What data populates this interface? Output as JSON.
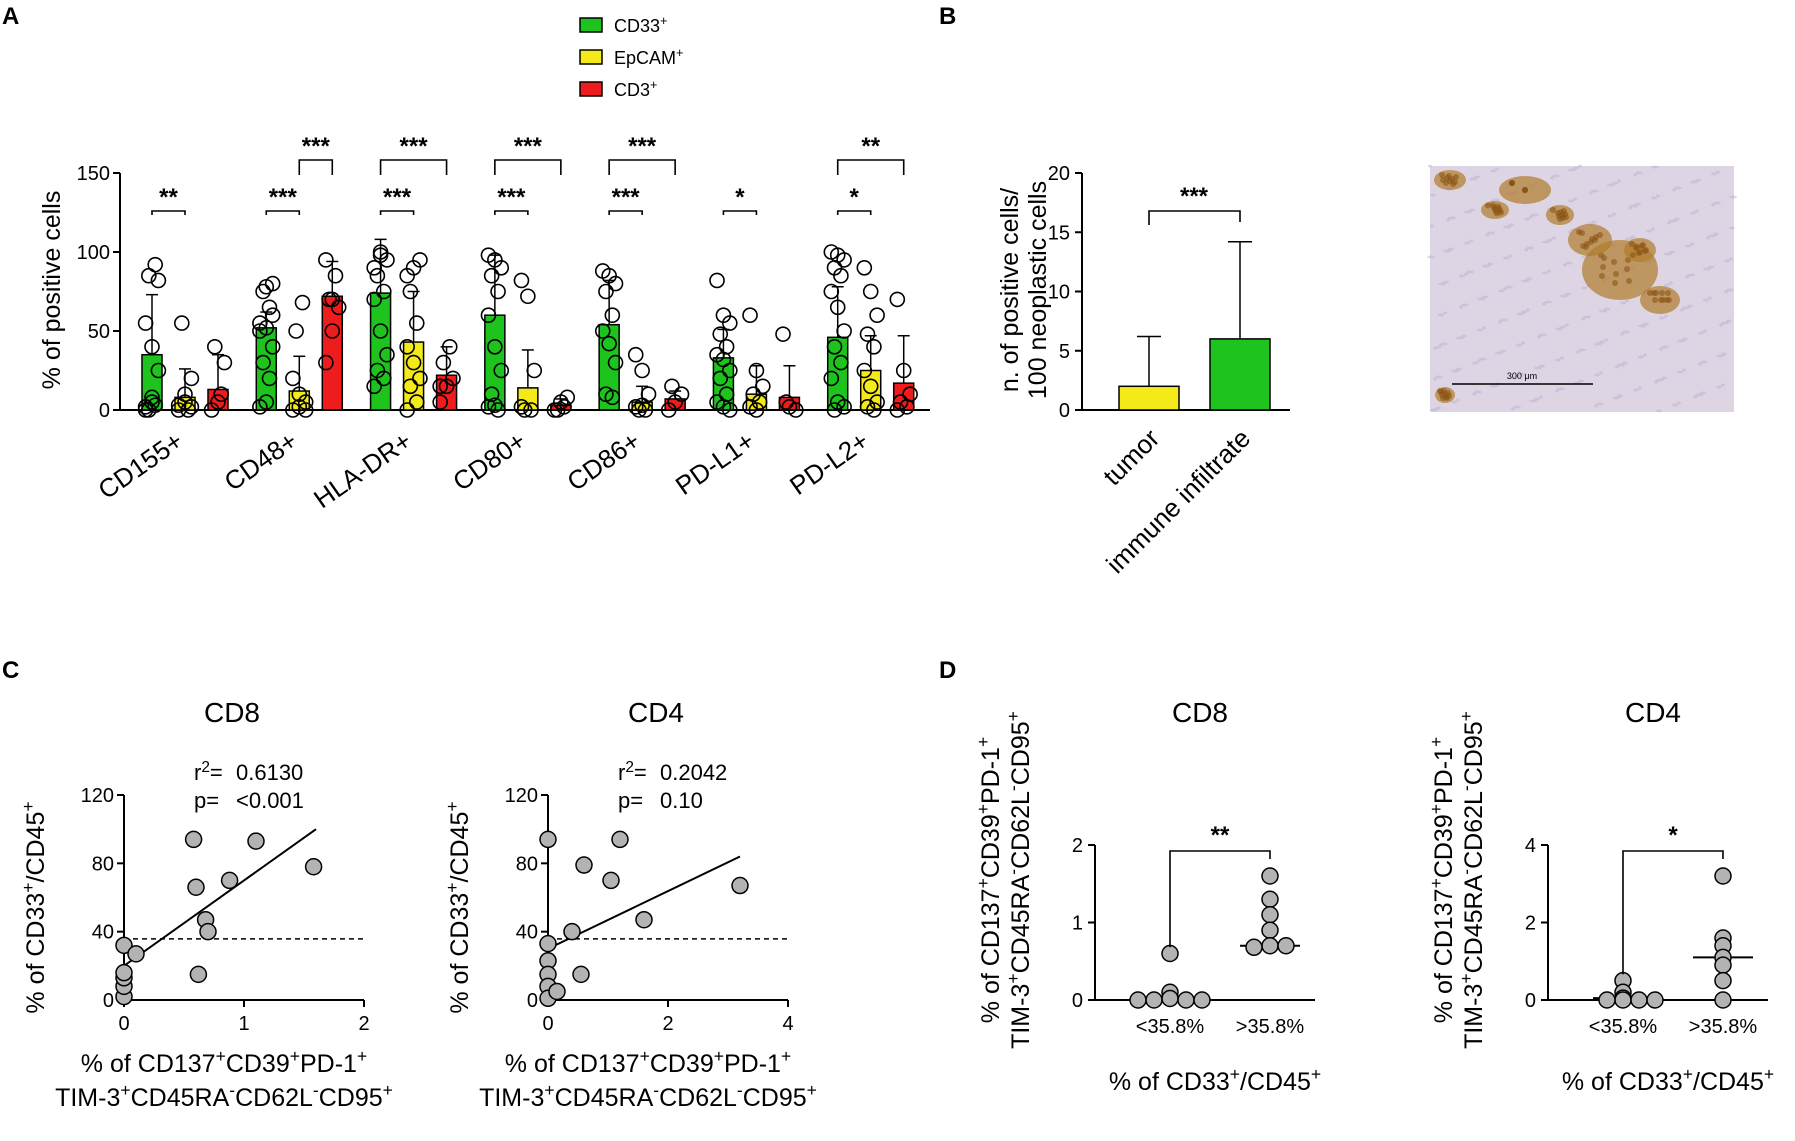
{
  "panels": {
    "A": "A",
    "B": "B",
    "C": "C",
    "D": "D"
  },
  "colors": {
    "CD33": "#1ec31e",
    "EpCAM": "#f5ea19",
    "CD3": "#ee1c1c",
    "point_fill": "#b3b3b3",
    "ihc_bg": "#ddd5e4",
    "ihc_stain": "#b07a2a"
  },
  "chart_data": [
    {
      "id": "A",
      "type": "bar",
      "title": "",
      "ylabel": "% of positive cells",
      "xlabel": "",
      "ylim": [
        0,
        150
      ],
      "yticks": [
        "0",
        "50",
        "100",
        "150"
      ],
      "legend": {
        "position": "top-center",
        "entries": [
          {
            "name": "CD33",
            "sup": "+",
            "color": "#1ec31e"
          },
          {
            "name": "EpCAM",
            "sup": "+",
            "color": "#f5ea19"
          },
          {
            "name": "CD3",
            "sup": "+",
            "color": "#ee1c1c"
          }
        ]
      },
      "categories": [
        "CD155+",
        "CD48+",
        "HLA-DR+",
        "CD80+",
        "CD86+",
        "PD-L1+",
        "PD-L2+"
      ],
      "series": [
        {
          "name": "CD33+",
          "values": [
            35,
            52,
            74,
            60,
            54,
            33,
            46
          ],
          "errors": [
            38,
            10,
            34,
            38,
            28,
            18,
            32
          ]
        },
        {
          "name": "EpCAM+",
          "values": [
            8,
            12,
            43,
            14,
            5,
            10,
            25
          ],
          "errors": [
            18,
            22,
            32,
            24,
            10,
            18,
            22
          ]
        },
        {
          "name": "CD3+",
          "values": [
            13,
            72,
            22,
            3,
            7,
            8,
            17
          ],
          "errors": [
            22,
            22,
            18,
            4,
            5,
            20,
            30
          ]
        }
      ],
      "points": [
        [
          [
            2,
            5,
            82,
            85,
            92,
            55,
            40,
            25,
            0,
            3,
            0,
            8
          ],
          [
            3,
            10,
            20,
            55,
            0,
            0,
            5,
            2
          ],
          [
            0,
            5,
            30,
            40,
            10
          ]
        ],
        [
          [
            50,
            78,
            80,
            75,
            65,
            55,
            52,
            40,
            30,
            20,
            2,
            5,
            60
          ],
          [
            0,
            2,
            5,
            50,
            68,
            20,
            10,
            0
          ],
          [
            30,
            50,
            65,
            70,
            85,
            95,
            70
          ]
        ],
        [
          [
            90,
            100,
            95,
            85,
            75,
            70,
            50,
            35,
            25,
            20,
            15,
            98
          ],
          [
            85,
            90,
            95,
            75,
            55,
            40,
            30,
            20,
            15,
            5,
            0
          ],
          [
            5,
            15,
            20,
            30,
            40,
            15
          ]
        ],
        [
          [
            98,
            95,
            90,
            85,
            75,
            60,
            40,
            25,
            10,
            0,
            2,
            3
          ],
          [
            82,
            72,
            25,
            0,
            0,
            2
          ],
          [
            0,
            5,
            8,
            0,
            2
          ]
        ],
        [
          [
            88,
            85,
            80,
            75,
            60,
            50,
            42,
            30,
            10,
            8
          ],
          [
            35,
            25,
            10,
            0,
            0,
            2,
            3
          ],
          [
            0,
            5,
            10,
            15
          ]
        ],
        [
          [
            82,
            60,
            55,
            48,
            40,
            35,
            32,
            25,
            20,
            10,
            5,
            2,
            0
          ],
          [
            60,
            25,
            15,
            10,
            5,
            2,
            0
          ],
          [
            48,
            2,
            0,
            5
          ]
        ],
        [
          [
            100,
            98,
            95,
            90,
            85,
            75,
            65,
            50,
            40,
            30,
            20,
            5,
            2,
            0
          ],
          [
            90,
            75,
            60,
            48,
            40,
            25,
            15,
            5,
            2,
            0
          ],
          [
            70,
            25,
            10,
            5,
            2,
            0
          ]
        ]
      ],
      "significance": [
        {
          "group": "CD155+",
          "from": "CD33+",
          "to": "EpCAM+",
          "label": "**"
        },
        {
          "group": "CD48+",
          "from": "CD33+",
          "to": "EpCAM+",
          "label": "***"
        },
        {
          "group": "CD48+",
          "from": "EpCAM+",
          "to": "CD3+",
          "label": "***"
        },
        {
          "group": "HLA-DR+",
          "from": "CD33+",
          "to": "EpCAM+",
          "label": "***"
        },
        {
          "group": "HLA-DR+",
          "from": "CD33+",
          "to": "CD3+",
          "label": "***"
        },
        {
          "group": "CD80+",
          "from": "CD33+",
          "to": "EpCAM+",
          "label": "***"
        },
        {
          "group": "CD80+",
          "from": "CD33+",
          "to": "CD3+",
          "label": "***"
        },
        {
          "group": "CD86+",
          "from": "CD33+",
          "to": "EpCAM+",
          "label": "***"
        },
        {
          "group": "CD86+",
          "from": "CD33+",
          "to": "CD3+",
          "label": "***"
        },
        {
          "group": "PD-L1+",
          "from": "CD33+",
          "to": "EpCAM+",
          "label": "*"
        },
        {
          "group": "PD-L2+",
          "from": "CD33+",
          "to": "EpCAM+",
          "label": "*"
        },
        {
          "group": "PD-L2+",
          "from": "CD33+",
          "to": "CD3+",
          "label": "**"
        }
      ]
    },
    {
      "id": "B",
      "type": "bar",
      "title": "",
      "ylabel_line1": "n. of positive cells/",
      "ylabel_line2": "100 neoplastic cells",
      "ylim": [
        0,
        20
      ],
      "yticks": [
        "0",
        "5",
        "10",
        "15",
        "20"
      ],
      "categories": [
        "tumor",
        "immune infiltrate"
      ],
      "values": [
        2,
        6
      ],
      "errors": [
        4.2,
        8.2
      ],
      "bar_colors": [
        "#f5ea19",
        "#1ec31e"
      ],
      "significance": "***"
    },
    {
      "id": "C-CD8",
      "type": "scatter",
      "title": "CD8",
      "xlabel_line1": "% of CD137<sup>+</sup>CD39<sup>+</sup>PD-1<sup>+</sup>",
      "xlabel_line2": "TIM-3<sup>+</sup>CD45RA<sup>-</sup>CD62L<sup>-</sup>CD95<sup>+</sup>",
      "ylabel": "% of CD33<sup>+</sup>/CD45<sup>+</sup>",
      "xlim": [
        0,
        2
      ],
      "ylim": [
        0,
        120
      ],
      "xticks": [
        "0",
        "1",
        "2"
      ],
      "yticks": [
        "0",
        "40",
        "80",
        "120"
      ],
      "r2_label": "r",
      "r2_value": "0.6130",
      "p_label": "p=",
      "p_value": "<0.001",
      "threshold": 35.8,
      "fit": {
        "x": [
          0,
          1.6
        ],
        "y": [
          20,
          100
        ]
      },
      "x": [
        0,
        0,
        0,
        0,
        0,
        0.1,
        0.58,
        0.6,
        0.62,
        0.68,
        0.7,
        0.88,
        1.1,
        1.58
      ],
      "y": [
        2,
        8,
        13,
        16,
        32,
        27,
        94,
        66,
        15,
        47,
        40,
        70,
        93,
        78
      ]
    },
    {
      "id": "C-CD4",
      "type": "scatter",
      "title": "CD4",
      "xlabel_line1": "% of CD137<sup>+</sup>CD39<sup>+</sup>PD-1<sup>+</sup>",
      "xlabel_line2": "TIM-3<sup>+</sup>CD45RA<sup>-</sup>CD62L<sup>-</sup>CD95<sup>+</sup>",
      "ylabel": "% of CD33<sup>+</sup>/CD45<sup>+</sup>",
      "xlim": [
        0,
        4
      ],
      "ylim": [
        0,
        120
      ],
      "xticks": [
        "0",
        "2",
        "4"
      ],
      "yticks": [
        "0",
        "40",
        "80",
        "120"
      ],
      "r2_label": "r",
      "r2_value": "0.2042",
      "p_label": "p=",
      "p_value": "0.10",
      "threshold": 35.8,
      "fit": {
        "x": [
          0,
          3.2
        ],
        "y": [
          30,
          84
        ]
      },
      "x": [
        0,
        0,
        0,
        0,
        0,
        0,
        0.15,
        0.4,
        0.55,
        0.6,
        1.05,
        1.2,
        1.6,
        3.2
      ],
      "y": [
        94,
        33,
        23,
        15,
        8,
        1,
        5,
        40,
        15,
        79,
        70,
        94,
        47,
        67
      ]
    },
    {
      "id": "D-CD8",
      "type": "scatter",
      "title": "CD8",
      "categories": [
        "<35.8%",
        ">35.8%"
      ],
      "xlabel": "% of CD33<sup>+</sup>/CD45<sup>+</sup>",
      "ylabel_line1": "% of CD137<sup>+</sup>CD39<sup>+</sup>PD-1<sup>+</sup>",
      "ylabel_line2": "TIM-3<sup>+</sup>CD45RA<sup>-</sup>CD62L<sup>-</sup>CD95<sup>+</sup>",
      "ylim": [
        0,
        2
      ],
      "yticks": [
        "0",
        "1",
        "2"
      ],
      "medians": [
        0.02,
        0.7
      ],
      "groups": [
        [
          0.6,
          0.1,
          0.02,
          0,
          0,
          0,
          0
        ],
        [
          1.6,
          1.3,
          1.1,
          0.9,
          0.7,
          0.7,
          0.68
        ]
      ],
      "significance": "**"
    },
    {
      "id": "D-CD4",
      "type": "scatter",
      "title": "CD4",
      "categories": [
        "<35.8%",
        ">35.8%"
      ],
      "xlabel": "% of CD33<sup>+</sup>/CD45<sup>+</sup>",
      "ylabel_line1": "% of CD137<sup>+</sup>CD39<sup>+</sup>PD-1<sup>+</sup>",
      "ylabel_line2": "TIM-3<sup>+</sup>CD45RA<sup>-</sup>CD62L<sup>-</sup>CD95<sup>+</sup>",
      "ylim": [
        0,
        4
      ],
      "yticks": [
        "0",
        "2",
        "4"
      ],
      "medians": [
        0.05,
        1.1
      ],
      "groups": [
        [
          0.5,
          0.2,
          0.05,
          0,
          0,
          0,
          0
        ],
        [
          3.2,
          1.6,
          1.4,
          1.1,
          0.9,
          0.5,
          0
        ]
      ],
      "significance": "*"
    }
  ],
  "image_B": {
    "scale_bar": "300 μm"
  }
}
